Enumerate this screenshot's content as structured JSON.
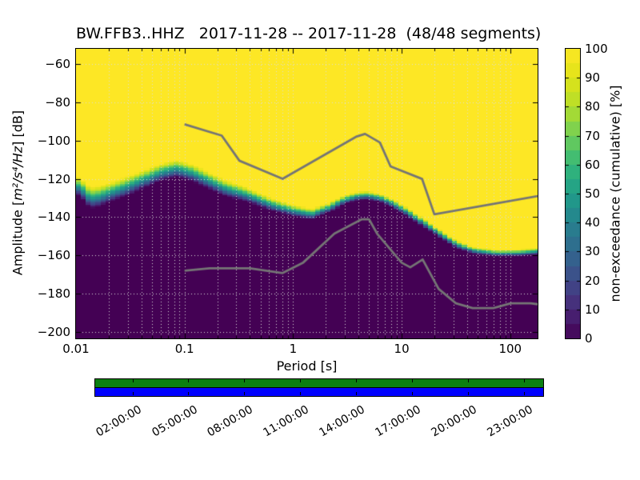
{
  "title": "BW.FFB3..HHZ   2017-11-28 -- 2017-11-28  (48/48 segments)",
  "labels": {
    "xlabel": "Period [s]",
    "ylabel_prefix": "Amplitude [",
    "ylabel_math": "m²/s⁴/Hz",
    "ylabel_suffix": "] [dB]",
    "colorbar_label": "non-exceedance (cumulative) [%]"
  },
  "chart_data": {
    "type": "heatmap",
    "subtype": "ppsd-cumulative-spectrogram",
    "title": "BW.FFB3..HHZ   2017-11-28 -- 2017-11-28  (48/48 segments)",
    "xlabel": "Period [s]",
    "ylabel": "Amplitude [m2/s4/Hz] [dB]",
    "x_axis": {
      "scale": "log",
      "lim": [
        0.01,
        179
      ],
      "ticks": [
        0.01,
        0.1,
        1,
        10,
        100
      ],
      "tick_labels": [
        "0.01",
        "0.1",
        "1",
        "10",
        "100"
      ],
      "minor_gridlines": true
    },
    "y_axis": {
      "lim": [
        -203.3,
        -52.1
      ],
      "ticks": [
        -60,
        -80,
        -100,
        -120,
        -140,
        -160,
        -180,
        -200
      ],
      "tick_labels": [
        "−60",
        "−80",
        "−100",
        "−120",
        "−140",
        "−160",
        "−180",
        "−200"
      ]
    },
    "grid": {
      "on": true,
      "style": "dotted",
      "color": "#dcdcdc"
    },
    "colorbar": {
      "label": "non-exceedance (cumulative) [%]",
      "cmap": "viridis",
      "lim": [
        0,
        100
      ],
      "ticks": [
        0,
        10,
        20,
        30,
        40,
        50,
        60,
        70,
        80,
        90,
        100
      ],
      "tick_labels": [
        "0",
        "10",
        "20",
        "30",
        "40",
        "50",
        "60",
        "70",
        "80",
        "90",
        "100"
      ],
      "segment_step_percent": 5
    },
    "psd_boundary": {
      "note": "50% non-exceedance level of the day's PSDs; [period_s, center_dB, transition_width_dB]. Color ramps from 0% (dark) below to 100% (yellow) above.",
      "points": [
        [
          0.01,
          -123.0,
          9.0
        ],
        [
          0.0123,
          -127.0,
          10.5
        ],
        [
          0.0134,
          -130.0,
          11.0
        ],
        [
          0.0155,
          -129.5,
          11.0
        ],
        [
          0.0218,
          -126.5,
          10.0
        ],
        [
          0.0307,
          -123.5,
          10.0
        ],
        [
          0.0431,
          -120.0,
          9.5
        ],
        [
          0.0605,
          -116.5,
          9.0
        ],
        [
          0.085,
          -114.5,
          9.0
        ],
        [
          0.117,
          -116.8,
          9.0
        ],
        [
          0.231,
          -124.6,
          8.5
        ],
        [
          0.383,
          -128.5,
          7.5
        ],
        [
          0.639,
          -133.5,
          6.5
        ],
        [
          0.975,
          -136.5,
          6.0
        ],
        [
          1.49,
          -138.5,
          5.5
        ],
        [
          2.09,
          -135.3,
          5.0
        ],
        [
          2.95,
          -131.0,
          5.0
        ],
        [
          3.93,
          -129.0,
          4.5
        ],
        [
          4.9,
          -128.6,
          4.5
        ],
        [
          6.32,
          -130.0,
          4.5
        ],
        [
          8.16,
          -132.7,
          4.5
        ],
        [
          11.45,
          -137.6,
          4.5
        ],
        [
          16.1,
          -143.2,
          4.5
        ],
        [
          22.6,
          -148.8,
          4.0
        ],
        [
          31.7,
          -154.0,
          4.0
        ],
        [
          44.6,
          -157.3,
          3.5
        ],
        [
          74.2,
          -158.9,
          3.5
        ],
        [
          123.0,
          -158.7,
          3.5
        ],
        [
          179.0,
          -157.8,
          3.5
        ]
      ]
    },
    "noise_models": {
      "name": "Peterson (1993) NHNM / NLNM",
      "color": "#757575",
      "nhnm": [
        [
          0.1,
          -91.5
        ],
        [
          0.22,
          -97.4
        ],
        [
          0.32,
          -110.5
        ],
        [
          0.8,
          -120.0
        ],
        [
          3.8,
          -98.0
        ],
        [
          4.6,
          -96.5
        ],
        [
          6.3,
          -101.0
        ],
        [
          7.9,
          -113.5
        ],
        [
          15.4,
          -120.0
        ],
        [
          20.0,
          -138.5
        ],
        [
          354.8,
          -126.0
        ]
      ],
      "nlnm": [
        [
          0.1,
          -168.0
        ],
        [
          0.17,
          -166.7
        ],
        [
          0.4,
          -166.7
        ],
        [
          0.8,
          -169.2
        ],
        [
          1.24,
          -163.7
        ],
        [
          2.4,
          -148.6
        ],
        [
          4.3,
          -141.1
        ],
        [
          5.0,
          -141.1
        ],
        [
          6.0,
          -149.0
        ],
        [
          10.0,
          -163.8
        ],
        [
          12.0,
          -166.2
        ],
        [
          15.6,
          -162.1
        ],
        [
          21.9,
          -177.5
        ],
        [
          31.6,
          -185.0
        ],
        [
          45.0,
          -187.5
        ],
        [
          70.0,
          -187.5
        ],
        [
          101.0,
          -185.0
        ],
        [
          154.0,
          -185.0
        ],
        [
          328.0,
          -187.5
        ]
      ]
    },
    "availability": {
      "day_span_hours": [
        0,
        24
      ],
      "used_color": "#0b8011",
      "present_color": "#0000ff",
      "tick_hours": [
        2,
        5,
        8,
        11,
        14,
        17,
        20,
        23
      ],
      "tick_labels": [
        "02:00:00",
        "05:00:00",
        "08:00:00",
        "11:00:00",
        "14:00:00",
        "17:00:00",
        "20:00:00",
        "23:00:00"
      ]
    }
  }
}
